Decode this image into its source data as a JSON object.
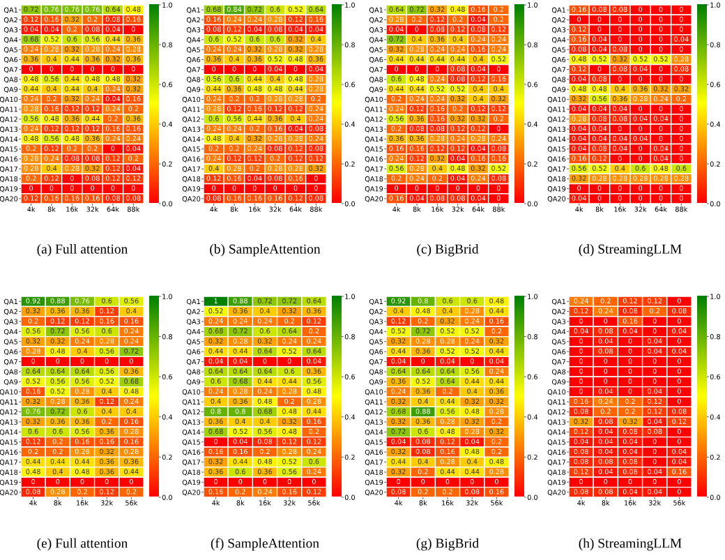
{
  "chart_data": [
    {
      "type": "heatmap",
      "title": "(a) Full attention",
      "categories": [
        "4k",
        "8k",
        "16k",
        "32k",
        "64k",
        "88k"
      ],
      "y_categories": [
        "QA1",
        "QA2",
        "QA3",
        "QA4",
        "QA5",
        "QA6",
        "QA7",
        "QA8",
        "QA9",
        "QA10",
        "QA11",
        "QA12",
        "QA13",
        "QA14",
        "QA15",
        "QA16",
        "QA17",
        "QA18",
        "QA19",
        "QA20"
      ],
      "data_labels": true,
      "clim": [
        0,
        1
      ],
      "cticks": [
        {
          "value": 0,
          "label": "0.0"
        },
        {
          "value": 0.2,
          "label": "0.2"
        },
        {
          "value": 0.4,
          "label": "0.4"
        },
        {
          "value": 0.6,
          "label": "0.6"
        },
        {
          "value": 0.8,
          "label": "0.8"
        },
        {
          "value": 1,
          "label": "1.0"
        }
      ],
      "cells": [
        [
          0.72,
          0.76,
          0.76,
          0.76,
          0.64,
          0.48
        ],
        [
          0.12,
          0.16,
          0.32,
          0.2,
          0.08,
          0.16
        ],
        [
          0.04,
          0.04,
          0.2,
          0.08,
          0.04,
          0
        ],
        [
          0.68,
          0.52,
          0.6,
          0.56,
          0.44,
          0.36
        ],
        [
          0.24,
          0.28,
          0.32,
          0.28,
          0.24,
          0.28
        ],
        [
          0.36,
          0.4,
          0.44,
          0.36,
          0.32,
          0.36
        ],
        [
          0,
          0,
          0,
          0,
          0,
          0
        ],
        [
          0.48,
          0.56,
          0.44,
          0.48,
          0.48,
          0.32
        ],
        [
          0.44,
          0.4,
          0.44,
          0.4,
          0.24,
          0.32
        ],
        [
          0.24,
          0.2,
          0.32,
          0.24,
          0.04,
          0.16
        ],
        [
          0.28,
          0.16,
          0.12,
          0.12,
          0.24,
          0.2
        ],
        [
          0.56,
          0.48,
          0.36,
          0.44,
          0.2,
          0.36
        ],
        [
          0.24,
          0.12,
          0.12,
          0.12,
          0.16,
          0.16
        ],
        [
          0.48,
          0.56,
          0.48,
          0.36,
          0.24,
          0.24
        ],
        [
          0.2,
          0.12,
          0.2,
          0.2,
          0,
          0.04
        ],
        [
          0.28,
          0.24,
          0.08,
          0.08,
          0.12,
          0.2
        ],
        [
          0.28,
          0.4,
          0.28,
          0.32,
          0.12,
          0.04
        ],
        [
          0.2,
          0.12,
          0,
          0.08,
          0.12,
          0.12
        ],
        [
          0,
          0,
          0,
          0,
          0,
          0
        ],
        [
          0.12,
          0.16,
          0.16,
          0.16,
          0.08,
          0.08
        ]
      ]
    },
    {
      "type": "heatmap",
      "title": "(b) SampleAttention",
      "categories": [
        "4k",
        "8k",
        "16k",
        "32k",
        "64k",
        "88k"
      ],
      "y_categories": [
        "QA1",
        "QA2",
        "QA3",
        "QA4",
        "QA5",
        "QA6",
        "QA7",
        "QA8",
        "QA9",
        "QA10",
        "QA11",
        "QA12",
        "QA13",
        "QA14",
        "QA15",
        "QA16",
        "QA17",
        "QA18",
        "QA19",
        "QA20"
      ],
      "data_labels": true,
      "clim": [
        0,
        1
      ],
      "cticks": [
        {
          "value": 0,
          "label": "0.0"
        },
        {
          "value": 0.2,
          "label": "0.2"
        },
        {
          "value": 0.4,
          "label": "0.4"
        },
        {
          "value": 0.6,
          "label": "0.6"
        },
        {
          "value": 0.8,
          "label": "0.8"
        },
        {
          "value": 1,
          "label": "1.0"
        }
      ],
      "cells": [
        [
          0.68,
          0.84,
          0.72,
          0.6,
          0.52,
          0.64
        ],
        [
          0.16,
          0.24,
          0.24,
          0.28,
          0.12,
          0.16
        ],
        [
          0.08,
          0.12,
          0.04,
          0.08,
          0.04,
          0.04
        ],
        [
          0.6,
          0.52,
          0.6,
          0.6,
          0.32,
          0.4
        ],
        [
          0.24,
          0.24,
          0.32,
          0.28,
          0.32,
          0.28
        ],
        [
          0.36,
          0.4,
          0.36,
          0.52,
          0.48,
          0.36
        ],
        [
          0,
          0,
          0,
          0.04,
          0,
          0.04
        ],
        [
          0.56,
          0.6,
          0.44,
          0.4,
          0.48,
          0.28
        ],
        [
          0.44,
          0.36,
          0.48,
          0.48,
          0.44,
          0.28
        ],
        [
          0.24,
          0.2,
          0.2,
          0.28,
          0.28,
          0.2
        ],
        [
          0.28,
          0.12,
          0.16,
          0.12,
          0.12,
          0.24
        ],
        [
          0.6,
          0.56,
          0.44,
          0.36,
          0.4,
          0.24
        ],
        [
          0.24,
          0.24,
          0.2,
          0.16,
          0.04,
          0.08
        ],
        [
          0.48,
          0.4,
          0.32,
          0.28,
          0.28,
          0.24
        ],
        [
          0.2,
          0.2,
          0.24,
          0.08,
          0.12,
          0.08
        ],
        [
          0.24,
          0.12,
          0.12,
          0.2,
          0.12,
          0.12
        ],
        [
          0.4,
          0.28,
          0.2,
          0.28,
          0.28,
          0.32
        ],
        [
          0.12,
          0.16,
          0.04,
          0.08,
          0.16,
          0
        ],
        [
          0,
          0,
          0,
          0,
          0,
          0
        ],
        [
          0.08,
          0.16,
          0.16,
          0.16,
          0.12,
          0.08
        ]
      ]
    },
    {
      "type": "heatmap",
      "title": "(c) BigBrid",
      "categories": [
        "4k",
        "8k",
        "16k",
        "32k",
        "64k",
        "88k"
      ],
      "y_categories": [
        "QA1",
        "QA2",
        "QA3",
        "QA4",
        "QA5",
        "QA6",
        "QA7",
        "QA8",
        "QA9",
        "QA10",
        "QA11",
        "QA12",
        "QA13",
        "QA14",
        "QA15",
        "QA16",
        "QA17",
        "QA18",
        "QA19",
        "QA20"
      ],
      "data_labels": true,
      "clim": [
        0,
        1
      ],
      "cticks": [
        {
          "value": 0,
          "label": "0.0"
        },
        {
          "value": 0.2,
          "label": "0.2"
        },
        {
          "value": 0.4,
          "label": "0.4"
        },
        {
          "value": 0.6,
          "label": "0.6"
        },
        {
          "value": 0.8,
          "label": "0.8"
        },
        {
          "value": 1,
          "label": "1.0"
        }
      ],
      "cells": [
        [
          0.64,
          0.72,
          0.32,
          0.48,
          0.16,
          0.2
        ],
        [
          0.28,
          0.2,
          0.12,
          0.2,
          0.04,
          0.2
        ],
        [
          0.04,
          0,
          0.08,
          0.12,
          0.08,
          0.12
        ],
        [
          0.72,
          0.4,
          0.36,
          0.4,
          0.24,
          0.24
        ],
        [
          0.32,
          0.28,
          0.24,
          0.24,
          0.16,
          0.24
        ],
        [
          0.44,
          0.44,
          0.44,
          0.44,
          0.4,
          0.52
        ],
        [
          0,
          0,
          0,
          0.08,
          0.04,
          0
        ],
        [
          0.6,
          0.48,
          0.24,
          0.08,
          0.12,
          0.16
        ],
        [
          0.44,
          0.44,
          0.52,
          0.52,
          0.4,
          0.4
        ],
        [
          0.2,
          0.24,
          0.24,
          0.32,
          0.4,
          0.32
        ],
        [
          0.24,
          0.12,
          0.16,
          0.2,
          0.12,
          0.12
        ],
        [
          0.56,
          0.36,
          0.16,
          0.32,
          0.32,
          0.2
        ],
        [
          0.2,
          0.08,
          0.08,
          0.12,
          0.12,
          0
        ],
        [
          0.36,
          0.36,
          0.28,
          0.24,
          0.28,
          0.24
        ],
        [
          0.16,
          0.16,
          0.12,
          0.12,
          0.04,
          0.08
        ],
        [
          0.24,
          0.12,
          0.32,
          0.04,
          0.16,
          0.16
        ],
        [
          0.56,
          0.28,
          0.4,
          0.48,
          0.32,
          0.52
        ],
        [
          0.2,
          0.24,
          0.2,
          0.04,
          0.24,
          0.08
        ],
        [
          0,
          0,
          0,
          0,
          0,
          0
        ],
        [
          0.16,
          0.04,
          0.08,
          0.08,
          0.04,
          0
        ]
      ]
    },
    {
      "type": "heatmap",
      "title": "(d) StreamingLLM",
      "categories": [
        "4k",
        "8k",
        "16k",
        "32k",
        "64k",
        "88k"
      ],
      "y_categories": [
        "QA1",
        "QA2",
        "QA3",
        "QA4",
        "QA5",
        "QA6",
        "QA7",
        "QA8",
        "QA9",
        "QA10",
        "QA11",
        "QA12",
        "QA13",
        "QA14",
        "QA15",
        "QA16",
        "QA17",
        "QA18",
        "QA19",
        "QA20"
      ],
      "data_labels": true,
      "clim": [
        0,
        1
      ],
      "cticks": [
        {
          "value": 0,
          "label": "0.0"
        },
        {
          "value": 0.2,
          "label": "0.2"
        },
        {
          "value": 0.4,
          "label": "0.4"
        },
        {
          "value": 0.6,
          "label": "0.6"
        },
        {
          "value": 0.8,
          "label": "0.8"
        },
        {
          "value": 1,
          "label": "1.0"
        }
      ],
      "cells": [
        [
          0.16,
          0.08,
          0.08,
          0,
          0,
          0
        ],
        [
          0,
          0,
          0,
          0,
          0,
          0
        ],
        [
          0.12,
          0,
          0,
          0,
          0,
          0
        ],
        [
          0.16,
          0.04,
          0,
          0,
          0,
          0.04
        ],
        [
          0.08,
          0.04,
          0.08,
          0,
          0,
          0
        ],
        [
          0.48,
          0.52,
          0.32,
          0.52,
          0.52,
          0.28
        ],
        [
          0.12,
          0,
          0.08,
          0.04,
          0,
          0.08
        ],
        [
          0.04,
          0.08,
          0,
          0,
          0,
          0
        ],
        [
          0.48,
          0.48,
          0.4,
          0.36,
          0.32,
          0.32
        ],
        [
          0.32,
          0.56,
          0.36,
          0.28,
          0.24,
          0.2
        ],
        [
          0.04,
          0.04,
          0.04,
          0,
          0,
          0
        ],
        [
          0.28,
          0.08,
          0.08,
          0.04,
          0.04,
          0
        ],
        [
          0.04,
          0.04,
          0,
          0,
          0,
          0
        ],
        [
          0.04,
          0.04,
          0.04,
          0.04,
          0,
          0
        ],
        [
          0.04,
          0.08,
          0.04,
          0,
          0.04,
          0
        ],
        [
          0.16,
          0.12,
          0,
          0,
          0.04,
          0
        ],
        [
          0.56,
          0.52,
          0.4,
          0.6,
          0.48,
          0.6
        ],
        [
          0.32,
          0.28,
          0.28,
          0.28,
          0.28,
          0.28
        ],
        [
          0,
          0,
          0,
          0,
          0,
          0
        ],
        [
          0.04,
          0,
          0,
          0,
          0,
          0
        ]
      ]
    },
    {
      "type": "heatmap",
      "title": "(e) Full attention",
      "categories": [
        "4k",
        "8k",
        "16k",
        "32k",
        "56k"
      ],
      "y_categories": [
        "QA1",
        "QA2",
        "QA3",
        "QA4",
        "QA5",
        "QA6",
        "QA7",
        "QA8",
        "QA9",
        "QA10",
        "QA11",
        "QA12",
        "QA13",
        "QA14",
        "QA15",
        "QA16",
        "QA17",
        "QA18",
        "QA19",
        "QA20"
      ],
      "data_labels": true,
      "clim": [
        0,
        1
      ],
      "cticks": [
        {
          "value": 0,
          "label": "0.0"
        },
        {
          "value": 0.2,
          "label": "0.2"
        },
        {
          "value": 0.4,
          "label": "0.4"
        },
        {
          "value": 0.6,
          "label": "0.6"
        },
        {
          "value": 0.8,
          "label": "0.8"
        },
        {
          "value": 1,
          "label": "1.0"
        }
      ],
      "cells": [
        [
          0.92,
          0.88,
          0.76,
          0.6,
          0.56
        ],
        [
          0.32,
          0.36,
          0.36,
          0.12,
          0.4
        ],
        [
          0.2,
          0.12,
          0.12,
          0.16,
          0.16
        ],
        [
          0.56,
          0.72,
          0.56,
          0.6,
          0.24
        ],
        [
          0.32,
          0.32,
          0.24,
          0.28,
          0.24
        ],
        [
          0.28,
          0.48,
          0.4,
          0.56,
          0.72
        ],
        [
          0,
          0,
          0,
          0,
          0
        ],
        [
          0.64,
          0.64,
          0.64,
          0.56,
          0.36
        ],
        [
          0.52,
          0.56,
          0.56,
          0.52,
          0.68
        ],
        [
          0.16,
          0.52,
          0.28,
          0.4,
          0.48
        ],
        [
          0.32,
          0.28,
          0.36,
          0.12,
          0.24
        ],
        [
          0.76,
          0.72,
          0.6,
          0.4,
          0.4
        ],
        [
          0.32,
          0.36,
          0.36,
          0.2,
          0.16
        ],
        [
          0.6,
          0.6,
          0.56,
          0.36,
          0.28
        ],
        [
          0.12,
          0.2,
          0.16,
          0.16,
          0.16
        ],
        [
          0.2,
          0.2,
          0.28,
          0.32,
          0.28
        ],
        [
          0.44,
          0.44,
          0.44,
          0.36,
          0.36
        ],
        [
          0.48,
          0.4,
          0.48,
          0.36,
          0.44
        ],
        [
          0,
          0,
          0,
          0,
          0
        ],
        [
          0.08,
          0.28,
          0.2,
          0.12,
          0.2
        ]
      ]
    },
    {
      "type": "heatmap",
      "title": "(f) SampleAttention",
      "categories": [
        "4k",
        "8k",
        "16k",
        "32k",
        "56k"
      ],
      "y_categories": [
        "QA1",
        "QA2",
        "QA3",
        "QA4",
        "QA5",
        "QA6",
        "QA7",
        "QA8",
        "QA9",
        "QA10",
        "QA11",
        "QA12",
        "QA13",
        "QA14",
        "QA15",
        "QA16",
        "QA17",
        "QA18",
        "QA19",
        "QA20"
      ],
      "data_labels": true,
      "clim": [
        0,
        1
      ],
      "cticks": [
        {
          "value": 0,
          "label": "0.0"
        },
        {
          "value": 0.2,
          "label": "0.2"
        },
        {
          "value": 0.4,
          "label": "0.4"
        },
        {
          "value": 0.6,
          "label": "0.6"
        },
        {
          "value": 0.8,
          "label": "0.8"
        },
        {
          "value": 1,
          "label": "1.0"
        }
      ],
      "cells": [
        [
          1,
          0.88,
          0.72,
          0.72,
          0.64
        ],
        [
          0.52,
          0.36,
          0.4,
          0.32,
          0.36
        ],
        [
          0.24,
          0.24,
          0.24,
          0.2,
          0.12
        ],
        [
          0.68,
          0.72,
          0.6,
          0.64,
          0.2
        ],
        [
          0.32,
          0.28,
          0.32,
          0.24,
          0.24
        ],
        [
          0.44,
          0.44,
          0.64,
          0.52,
          0.64
        ],
        [
          0.04,
          0.04,
          0,
          0,
          0.04
        ],
        [
          0.64,
          0.64,
          0.64,
          0.6,
          0.36
        ],
        [
          0.6,
          0.68,
          0.44,
          0.44,
          0.56
        ],
        [
          0.24,
          0.28,
          0.24,
          0.28,
          0.48
        ],
        [
          0.4,
          0.36,
          0.48,
          0.2,
          0.28
        ],
        [
          0.8,
          0.8,
          0.68,
          0.48,
          0.44
        ],
        [
          0.36,
          0.4,
          0.4,
          0.32,
          0.16
        ],
        [
          0.68,
          0.52,
          0.56,
          0.48,
          0.2
        ],
        [
          0,
          0.04,
          0.08,
          0.12,
          0.12
        ],
        [
          0.16,
          0.16,
          0.2,
          0.28,
          0.24
        ],
        [
          0.32,
          0.44,
          0.48,
          0.52,
          0.6
        ],
        [
          0.36,
          0.6,
          0.36,
          0.56,
          0.24
        ],
        [
          0,
          0,
          0,
          0,
          0
        ],
        [
          0.16,
          0.2,
          0.24,
          0.16,
          0.12
        ]
      ]
    },
    {
      "type": "heatmap",
      "title": "(g) BigBrid",
      "categories": [
        "4k",
        "8k",
        "16k",
        "32k",
        "56k"
      ],
      "y_categories": [
        "QA1",
        "QA2",
        "QA3",
        "QA4",
        "QA5",
        "QA6",
        "QA7",
        "QA8",
        "QA9",
        "QA10",
        "QA11",
        "QA12",
        "QA13",
        "QA14",
        "QA15",
        "QA16",
        "QA17",
        "QA18",
        "QA19",
        "QA20"
      ],
      "data_labels": true,
      "clim": [
        0,
        1
      ],
      "cticks": [
        {
          "value": 0,
          "label": "0.0"
        },
        {
          "value": 0.2,
          "label": "0.2"
        },
        {
          "value": 0.4,
          "label": "0.4"
        },
        {
          "value": 0.6,
          "label": "0.6"
        },
        {
          "value": 0.8,
          "label": "0.8"
        },
        {
          "value": 1,
          "label": "1.0"
        }
      ],
      "cells": [
        [
          0.92,
          0.8,
          0.6,
          0.6,
          0.48
        ],
        [
          0.4,
          0.48,
          0.4,
          0.28,
          0.44
        ],
        [
          0.12,
          0.2,
          0.32,
          0.24,
          0.16
        ],
        [
          0.52,
          0.72,
          0.52,
          0.52,
          0.2
        ],
        [
          0.32,
          0.28,
          0.28,
          0.24,
          0.32
        ],
        [
          0.44,
          0.36,
          0.52,
          0.52,
          0.44
        ],
        [
          0.04,
          0,
          0.04,
          0,
          0.04
        ],
        [
          0.64,
          0.64,
          0.64,
          0.56,
          0.24
        ],
        [
          0.36,
          0.52,
          0.64,
          0.44,
          0.44
        ],
        [
          0.24,
          0.36,
          0.2,
          0.4,
          0.36
        ],
        [
          0.32,
          0.4,
          0.44,
          0.32,
          0.32
        ],
        [
          0.68,
          0.88,
          0.56,
          0.48,
          0.28
        ],
        [
          0.32,
          0.36,
          0.28,
          0.32,
          0.2
        ],
        [
          0.72,
          0.6,
          0.48,
          0.28,
          0.32
        ],
        [
          0.04,
          0.08,
          0.12,
          0.04,
          0.2
        ],
        [
          0.32,
          0.08,
          0.16,
          0.48,
          0.2
        ],
        [
          0.44,
          0.4,
          0.28,
          0.4,
          0.48
        ],
        [
          0.32,
          0.2,
          0.44,
          0.44,
          0.28
        ],
        [
          0,
          0,
          0,
          0,
          0
        ],
        [
          0.08,
          0.2,
          0.2,
          0.08,
          0.16
        ]
      ]
    },
    {
      "type": "heatmap",
      "title": "(h) StreamingLLM",
      "categories": [
        "4k",
        "8k",
        "16k",
        "32k",
        "56k"
      ],
      "y_categories": [
        "QA1",
        "QA2",
        "QA3",
        "QA4",
        "QA5",
        "QA6",
        "QA7",
        "QA8",
        "QA9",
        "QA10",
        "QA11",
        "QA12",
        "QA13",
        "QA14",
        "QA15",
        "QA16",
        "QA17",
        "QA18",
        "QA19",
        "QA20"
      ],
      "data_labels": true,
      "clim": [
        0,
        1
      ],
      "cticks": [
        {
          "value": 0,
          "label": "0.0"
        },
        {
          "value": 0.2,
          "label": "0.2"
        },
        {
          "value": 0.4,
          "label": "0.4"
        },
        {
          "value": 0.6,
          "label": "0.6"
        },
        {
          "value": 0.8,
          "label": "0.8"
        },
        {
          "value": 1,
          "label": "1.0"
        }
      ],
      "cells": [
        [
          0.24,
          0.2,
          0.12,
          0.12,
          0
        ],
        [
          0.12,
          0.24,
          0.08,
          0.2,
          0.08
        ],
        [
          0,
          0,
          0.16,
          0,
          0
        ],
        [
          0.04,
          0.08,
          0.04,
          0,
          0.04
        ],
        [
          0,
          0.04,
          0,
          0.04,
          0
        ],
        [
          0,
          0.08,
          0,
          0.04,
          0.04
        ],
        [
          0,
          0,
          0,
          0,
          0
        ],
        [
          0,
          0,
          0,
          0,
          0
        ],
        [
          0,
          0,
          0,
          0,
          0
        ],
        [
          0,
          0.04,
          0,
          0.04,
          0
        ],
        [
          0.16,
          0.24,
          0.2,
          0.12,
          0
        ],
        [
          0.08,
          0.2,
          0.2,
          0.12,
          0.08
        ],
        [
          0.32,
          0.08,
          0.32,
          0.04,
          0.12
        ],
        [
          0.12,
          0.04,
          0.08,
          0.08,
          0
        ],
        [
          0.04,
          0.04,
          0.04,
          0,
          0
        ],
        [
          0.08,
          0.04,
          0.04,
          0,
          0.04
        ],
        [
          0.08,
          0.08,
          0.08,
          0,
          0.04
        ],
        [
          0.12,
          0.04,
          0.08,
          0.04,
          0.16
        ],
        [
          0,
          0,
          0,
          0,
          0
        ],
        [
          0.08,
          0.08,
          0.04,
          0.04,
          0
        ]
      ]
    }
  ]
}
